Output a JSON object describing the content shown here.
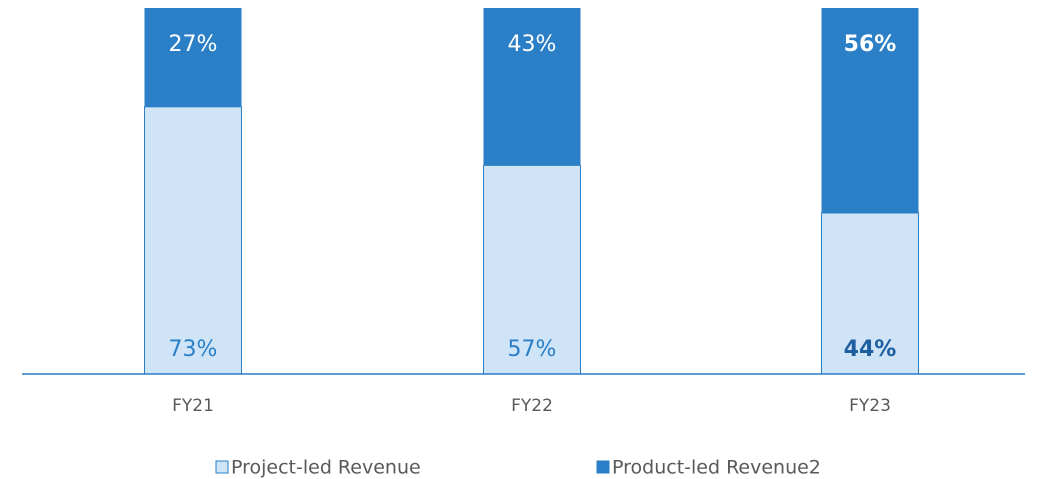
{
  "chart_data": {
    "type": "stacked_bar",
    "categories": [
      "FY21",
      "FY22",
      "FY23"
    ],
    "series": [
      {
        "name": "Project-led Revenue",
        "color": "#cfe4f7",
        "values": [
          73,
          57,
          44
        ],
        "value_labels": [
          "73%",
          "57%",
          "44%"
        ]
      },
      {
        "name": "Product-led Revenue2",
        "color": "#2a7fc7",
        "values": [
          27,
          43,
          56
        ],
        "value_labels": [
          "27%",
          "43%",
          "56%"
        ]
      }
    ],
    "label_bold": [
      false,
      false,
      true
    ]
  }
}
